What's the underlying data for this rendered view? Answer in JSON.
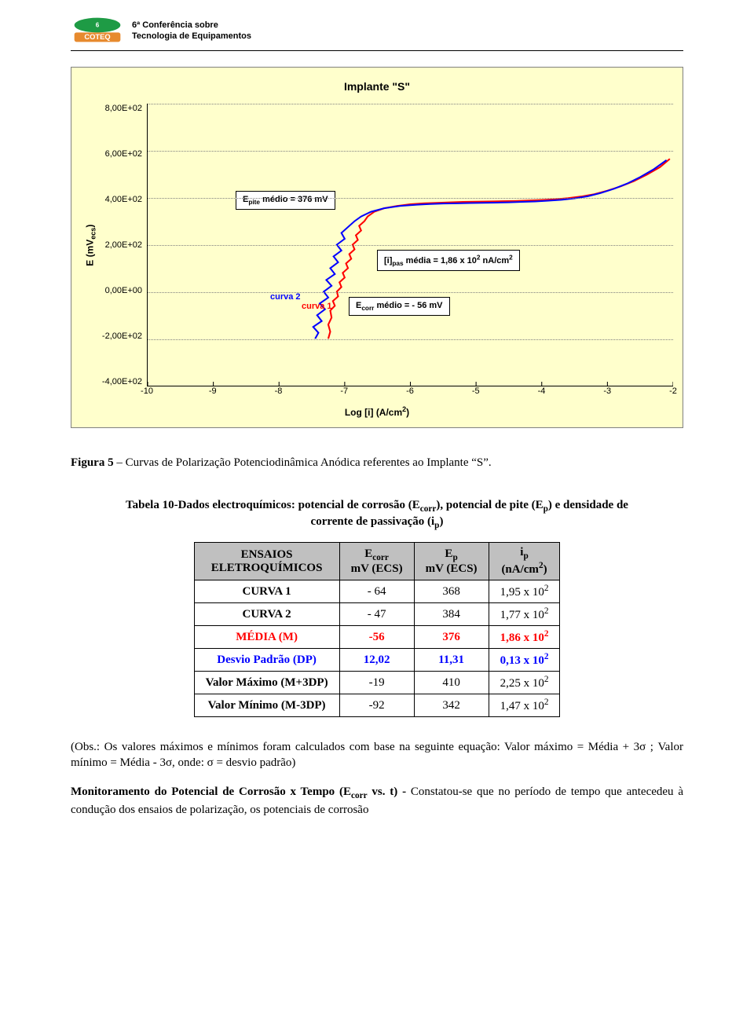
{
  "header": {
    "line1": "6ª Conferência sobre",
    "line2": "Tecnologia de Equipamentos",
    "logo_text": "COTEQ",
    "logo_green": "#1e9b45",
    "logo_orange": "#e78a2e"
  },
  "chart": {
    "title": "Implante \"S\"",
    "type": "line",
    "ylabel": "E (mVecs)",
    "xlabel": "Log [i] (A/cm²)",
    "background_color": "#ffffcc",
    "grid_color": "#808080",
    "yticks": [
      "8,00E+02",
      "6,00E+02",
      "4,00E+02",
      "2,00E+02",
      "0,00E+00",
      "-2,00E+02",
      "-4,00E+02"
    ],
    "ylim": [
      -400,
      800
    ],
    "xticks": [
      "-10",
      "-9",
      "-8",
      "-7",
      "-6",
      "-5",
      "-4",
      "-3",
      "-2"
    ],
    "xlim": [
      -10,
      -2
    ],
    "series": [
      {
        "name": "curva 1",
        "color": "#ff0000",
        "width": 2,
        "points": [
          [
            -7.25,
            -200
          ],
          [
            -7.22,
            -170
          ],
          [
            -7.25,
            -140
          ],
          [
            -7.2,
            -110
          ],
          [
            -7.22,
            -80
          ],
          [
            -7.15,
            -60
          ],
          [
            -7.18,
            -40
          ],
          [
            -7.1,
            -20
          ],
          [
            -7.12,
            0
          ],
          [
            -7.05,
            20
          ],
          [
            -7.08,
            40
          ],
          [
            -7.0,
            60
          ],
          [
            -7.03,
            80
          ],
          [
            -6.95,
            100
          ],
          [
            -6.98,
            120
          ],
          [
            -6.9,
            140
          ],
          [
            -6.93,
            160
          ],
          [
            -6.85,
            180
          ],
          [
            -6.88,
            200
          ],
          [
            -6.8,
            220
          ],
          [
            -6.83,
            240
          ],
          [
            -6.75,
            260
          ],
          [
            -6.78,
            280
          ],
          [
            -6.7,
            300
          ],
          [
            -6.65,
            320
          ],
          [
            -6.55,
            340
          ],
          [
            -6.4,
            355
          ],
          [
            -6.2,
            365
          ],
          [
            -6.0,
            372
          ],
          [
            -5.8,
            376
          ],
          [
            -5.6,
            378
          ],
          [
            -5.4,
            380
          ],
          [
            -5.2,
            382
          ],
          [
            -5.0,
            383
          ],
          [
            -4.8,
            384
          ],
          [
            -4.6,
            385
          ],
          [
            -4.4,
            386
          ],
          [
            -4.2,
            388
          ],
          [
            -4.0,
            390
          ],
          [
            -3.8,
            393
          ],
          [
            -3.6,
            398
          ],
          [
            -3.4,
            405
          ],
          [
            -3.2,
            415
          ],
          [
            -3.0,
            430
          ],
          [
            -2.8,
            448
          ],
          [
            -2.6,
            470
          ],
          [
            -2.4,
            498
          ],
          [
            -2.2,
            530
          ],
          [
            -2.05,
            565
          ]
        ]
      },
      {
        "name": "curva 2",
        "color": "#0000ff",
        "width": 2,
        "points": [
          [
            -7.45,
            -200
          ],
          [
            -7.4,
            -175
          ],
          [
            -7.48,
            -150
          ],
          [
            -7.35,
            -125
          ],
          [
            -7.42,
            -100
          ],
          [
            -7.3,
            -75
          ],
          [
            -7.38,
            -50
          ],
          [
            -7.25,
            -25
          ],
          [
            -7.32,
            0
          ],
          [
            -7.2,
            25
          ],
          [
            -7.28,
            50
          ],
          [
            -7.15,
            75
          ],
          [
            -7.22,
            100
          ],
          [
            -7.1,
            125
          ],
          [
            -7.17,
            150
          ],
          [
            -7.05,
            175
          ],
          [
            -7.12,
            200
          ],
          [
            -7.0,
            225
          ],
          [
            -7.05,
            250
          ],
          [
            -6.95,
            275
          ],
          [
            -6.85,
            300
          ],
          [
            -6.75,
            320
          ],
          [
            -6.6,
            340
          ],
          [
            -6.4,
            355
          ],
          [
            -6.15,
            365
          ],
          [
            -5.9,
            370
          ],
          [
            -5.7,
            373
          ],
          [
            -5.5,
            375
          ],
          [
            -5.3,
            376
          ],
          [
            -5.1,
            377
          ],
          [
            -4.9,
            378
          ],
          [
            -4.7,
            379
          ],
          [
            -4.5,
            380
          ],
          [
            -4.3,
            382
          ],
          [
            -4.1,
            384
          ],
          [
            -3.9,
            387
          ],
          [
            -3.7,
            391
          ],
          [
            -3.5,
            397
          ],
          [
            -3.3,
            406
          ],
          [
            -3.1,
            420
          ],
          [
            -2.9,
            438
          ],
          [
            -2.7,
            460
          ],
          [
            -2.5,
            488
          ],
          [
            -2.3,
            520
          ],
          [
            -2.1,
            560
          ]
        ]
      }
    ],
    "annotations": {
      "epite_box": "Epite médio =  376 mV",
      "ipas_box": "[i]pas média =  1,86 x 10² nA/cm²",
      "ecorr_box": "Ecorr médio =  - 56 mV",
      "curva1_label": "curva 1",
      "curva2_label": "curva 2",
      "label_fontsize": 11,
      "label_color_1": "#ff0000",
      "label_color_2": "#0000ff"
    }
  },
  "figure_caption": {
    "prefix": "Figura 5",
    "text": " – Curvas de Polarização Potenciodinâmica Anódica referentes ao Implante “S”."
  },
  "table_caption": {
    "prefix": "Tabela 10-",
    "text": "Dados electroquímicos: potencial de corrosão (E",
    "sub1": "corr",
    "mid1": "), potencial de pite (E",
    "sub2": "p",
    "mid2": ") e densidade de corrente de passivação (i",
    "sub3": "p",
    "end": ")"
  },
  "table": {
    "header_bg": "#c0c0c0",
    "columns": [
      {
        "l1": "ENSAIOS",
        "l2": "ELETROQUÍMICOS"
      },
      {
        "l1": "E",
        "sub": "corr",
        "l2": "mV (ECS)"
      },
      {
        "l1": "E",
        "sub": "p",
        "l2": "mV (ECS)"
      },
      {
        "l1": "i",
        "sub": "p",
        "l2": "(nA/cm",
        "sup": "2",
        "l2b": ")"
      }
    ],
    "rows": [
      {
        "class": "",
        "label": "CURVA 1",
        "c1": "- 64",
        "c2": "368",
        "c3": "1,95 x 10",
        "c3sup": "2"
      },
      {
        "class": "",
        "label": "CURVA 2",
        "c1": "- 47",
        "c2": "384",
        "c3": "1,77 x 10",
        "c3sup": "2"
      },
      {
        "class": "media",
        "label": "MÉDIA (M)",
        "c1": "-56",
        "c2": "376",
        "c3": "1,86 x 10",
        "c3sup": "2"
      },
      {
        "class": "dp",
        "label": "Desvio Padrão (DP)",
        "c1": "12,02",
        "c2": "11,31",
        "c3": "0,13 x 10",
        "c3sup": "2"
      },
      {
        "class": "",
        "label": "Valor Máximo (M+3DP)",
        "c1": "-19",
        "c2": "410",
        "c3": "2,25 x 10",
        "c3sup": "2"
      },
      {
        "class": "",
        "label": "Valor Mínimo (M-3DP)",
        "c1": "-92",
        "c2": "342",
        "c3": "1,47 x 10",
        "c3sup": "2"
      }
    ]
  },
  "obs": "(Obs.:  Os valores máximos  e mínimos foram calculados com base na seguinte equação: Valor máximo = Média + 3σ ; Valor mínimo  = Média - 3σ, onde: σ = desvio padrão)",
  "para2": {
    "bold": "Monitoramento do Potencial de Corrosão x Tempo (E",
    "bold_sub": "corr",
    "bold_tail": " vs. t) - ",
    "text": "Constatou-se que no  período de tempo que antecedeu à condução dos ensaios de polarização, os potenciais de corrosão"
  }
}
